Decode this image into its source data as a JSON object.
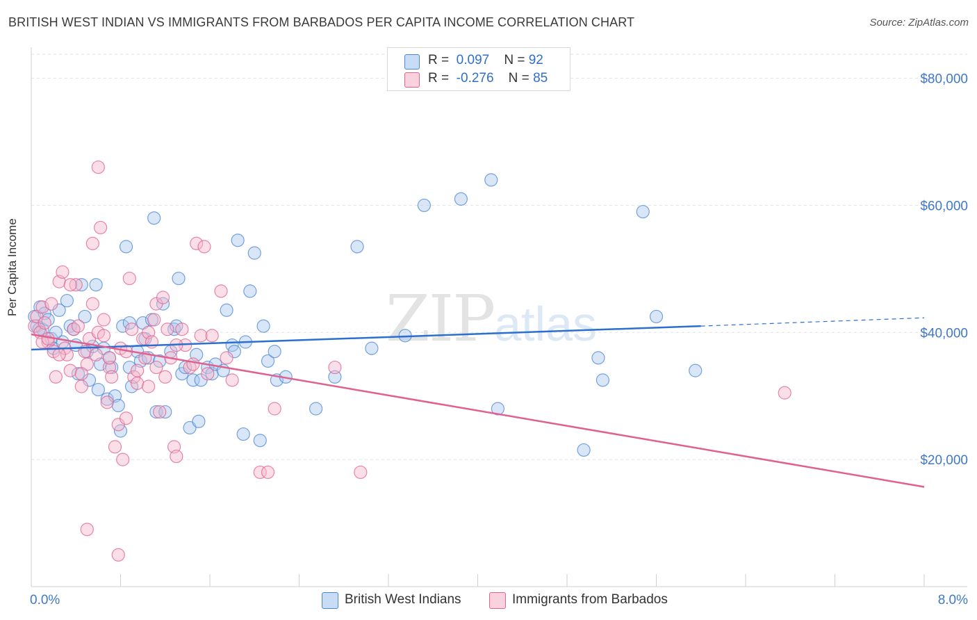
{
  "title": "BRITISH WEST INDIAN VS IMMIGRANTS FROM BARBADOS PER CAPITA INCOME CORRELATION CHART",
  "source": "Source: ZipAtlas.com",
  "watermark": {
    "zip": "ZIP",
    "atlas": "atlas"
  },
  "legend": {
    "rows": [
      {
        "r_label": "R =",
        "r_value": "0.097",
        "n_label": "N =",
        "n_value": "92",
        "color": "#a9c8ef"
      },
      {
        "r_label": "R =",
        "r_value": "-0.276",
        "n_label": "N =",
        "n_value": "85",
        "color": "#f5b8cb"
      }
    ]
  },
  "chart_data": {
    "type": "scatter",
    "title": "BRITISH WEST INDIAN VS IMMIGRANTS FROM BARBADOS PER CAPITA INCOME CORRELATION CHART",
    "xlabel": "",
    "ylabel": "Per Capita Income",
    "xlim": [
      0,
      8
    ],
    "ylim": [
      0,
      84000
    ],
    "x_tick_labels": [
      "0.0%",
      "8.0%"
    ],
    "y_ticks": [
      20000,
      40000,
      60000,
      80000
    ],
    "y_tick_labels": [
      "$20,000",
      "$40,000",
      "$60,000",
      "$80,000"
    ],
    "grid": true,
    "legend_position": "top-center",
    "series": [
      {
        "name": "British West Indians",
        "color": "#4a86d4",
        "fill": "#a9c8ef",
        "trend": {
          "x0": 0,
          "y0": 37300,
          "x1": 6,
          "y1": 41000,
          "dashed_to_x": 8,
          "dashed_to_y": 42300
        },
        "points": [
          [
            0.03,
            42500
          ],
          [
            0.05,
            41000
          ],
          [
            0.08,
            44000
          ],
          [
            0.1,
            40500
          ],
          [
            0.12,
            43000
          ],
          [
            0.15,
            42000
          ],
          [
            0.18,
            39000
          ],
          [
            0.2,
            37500
          ],
          [
            0.25,
            43500
          ],
          [
            0.28,
            38500
          ],
          [
            0.32,
            45000
          ],
          [
            0.35,
            41000
          ],
          [
            0.4,
            38000
          ],
          [
            0.42,
            33500
          ],
          [
            0.45,
            47500
          ],
          [
            0.48,
            42500
          ],
          [
            0.5,
            37000
          ],
          [
            0.52,
            32500
          ],
          [
            0.55,
            37800
          ],
          [
            0.58,
            47500
          ],
          [
            0.6,
            31000
          ],
          [
            0.62,
            35000
          ],
          [
            0.65,
            37500
          ],
          [
            0.68,
            29500
          ],
          [
            0.7,
            36000
          ],
          [
            0.72,
            34500
          ],
          [
            0.75,
            30000
          ],
          [
            0.78,
            28500
          ],
          [
            0.8,
            24500
          ],
          [
            0.82,
            41000
          ],
          [
            0.85,
            53500
          ],
          [
            0.88,
            34500
          ],
          [
            0.9,
            31500
          ],
          [
            0.95,
            37000
          ],
          [
            0.98,
            35500
          ],
          [
            1.0,
            41500
          ],
          [
            1.02,
            39000
          ],
          [
            1.05,
            36000
          ],
          [
            1.08,
            42000
          ],
          [
            1.1,
            58000
          ],
          [
            1.12,
            27500
          ],
          [
            1.15,
            35500
          ],
          [
            1.18,
            44500
          ],
          [
            1.2,
            27500
          ],
          [
            1.25,
            37000
          ],
          [
            1.28,
            40500
          ],
          [
            1.3,
            41000
          ],
          [
            1.32,
            48500
          ],
          [
            1.35,
            33500
          ],
          [
            1.38,
            34500
          ],
          [
            1.42,
            25000
          ],
          [
            1.45,
            32500
          ],
          [
            1.48,
            36500
          ],
          [
            1.5,
            26000
          ],
          [
            1.52,
            32500
          ],
          [
            1.58,
            34500
          ],
          [
            1.62,
            33500
          ],
          [
            1.65,
            35000
          ],
          [
            1.72,
            34000
          ],
          [
            1.75,
            43500
          ],
          [
            1.8,
            38000
          ],
          [
            1.82,
            37000
          ],
          [
            1.85,
            54500
          ],
          [
            1.9,
            24000
          ],
          [
            1.92,
            38500
          ],
          [
            1.96,
            46500
          ],
          [
            2.0,
            52500
          ],
          [
            2.05,
            23000
          ],
          [
            2.08,
            41000
          ],
          [
            2.12,
            35500
          ],
          [
            2.18,
            37000
          ],
          [
            2.2,
            32500
          ],
          [
            2.28,
            33000
          ],
          [
            2.55,
            28000
          ],
          [
            2.72,
            33000
          ],
          [
            2.92,
            53500
          ],
          [
            3.05,
            37500
          ],
          [
            3.35,
            39500
          ],
          [
            3.52,
            60000
          ],
          [
            3.85,
            61000
          ],
          [
            4.12,
            64000
          ],
          [
            4.18,
            28000
          ],
          [
            4.95,
            21500
          ],
          [
            5.08,
            36000
          ],
          [
            5.12,
            32500
          ],
          [
            5.48,
            59000
          ],
          [
            5.6,
            42500
          ],
          [
            5.95,
            34000
          ],
          [
            0.07,
            40500
          ],
          [
            0.22,
            40000
          ],
          [
            0.38,
            40500
          ],
          [
            0.88,
            41500
          ]
        ]
      },
      {
        "name": "Immigrants from Barbados",
        "color": "#e0608e",
        "fill": "#f5b8cb",
        "trend": {
          "x0": 0,
          "y0": 39700,
          "x1": 8,
          "y1": 15700
        },
        "points": [
          [
            0.03,
            41000
          ],
          [
            0.05,
            42500
          ],
          [
            0.08,
            40000
          ],
          [
            0.1,
            44000
          ],
          [
            0.12,
            41500
          ],
          [
            0.15,
            38500
          ],
          [
            0.18,
            44500
          ],
          [
            0.2,
            37000
          ],
          [
            0.22,
            33000
          ],
          [
            0.25,
            48000
          ],
          [
            0.28,
            49500
          ],
          [
            0.3,
            37500
          ],
          [
            0.32,
            36500
          ],
          [
            0.35,
            34000
          ],
          [
            0.38,
            40500
          ],
          [
            0.4,
            47500
          ],
          [
            0.42,
            41000
          ],
          [
            0.45,
            31500
          ],
          [
            0.48,
            37000
          ],
          [
            0.5,
            35000
          ],
          [
            0.52,
            39000
          ],
          [
            0.55,
            54000
          ],
          [
            0.58,
            36500
          ],
          [
            0.6,
            66000
          ],
          [
            0.62,
            56500
          ],
          [
            0.65,
            42000
          ],
          [
            0.68,
            29000
          ],
          [
            0.7,
            34500
          ],
          [
            0.72,
            33000
          ],
          [
            0.75,
            22000
          ],
          [
            0.78,
            25500
          ],
          [
            0.8,
            37500
          ],
          [
            0.82,
            20000
          ],
          [
            0.85,
            26500
          ],
          [
            0.88,
            48500
          ],
          [
            0.9,
            40500
          ],
          [
            0.92,
            33000
          ],
          [
            0.95,
            34000
          ],
          [
            1.0,
            39000
          ],
          [
            1.02,
            36000
          ],
          [
            1.05,
            40000
          ],
          [
            1.08,
            38500
          ],
          [
            1.1,
            42000
          ],
          [
            1.12,
            44500
          ],
          [
            1.15,
            27500
          ],
          [
            1.18,
            45500
          ],
          [
            1.2,
            33000
          ],
          [
            1.22,
            40500
          ],
          [
            1.25,
            36000
          ],
          [
            1.28,
            22000
          ],
          [
            1.3,
            20500
          ],
          [
            1.35,
            40500
          ],
          [
            1.38,
            38000
          ],
          [
            1.42,
            34500
          ],
          [
            1.45,
            35000
          ],
          [
            1.48,
            54000
          ],
          [
            1.52,
            39500
          ],
          [
            1.55,
            53500
          ],
          [
            1.58,
            33500
          ],
          [
            1.62,
            39500
          ],
          [
            1.7,
            46500
          ],
          [
            1.75,
            36000
          ],
          [
            1.8,
            32500
          ],
          [
            2.05,
            18000
          ],
          [
            2.12,
            18000
          ],
          [
            2.18,
            28000
          ],
          [
            2.72,
            34500
          ],
          [
            2.95,
            18000
          ],
          [
            6.75,
            30500
          ],
          [
            0.5,
            9000
          ],
          [
            0.78,
            5000
          ],
          [
            0.1,
            38500
          ],
          [
            0.15,
            39000
          ],
          [
            0.35,
            47500
          ],
          [
            0.6,
            40000
          ],
          [
            0.7,
            36000
          ],
          [
            0.95,
            32000
          ],
          [
            1.12,
            34500
          ],
          [
            1.3,
            38000
          ],
          [
            0.25,
            36500
          ],
          [
            0.45,
            33500
          ],
          [
            0.55,
            44500
          ],
          [
            0.65,
            39500
          ],
          [
            0.85,
            37000
          ],
          [
            1.05,
            31500
          ]
        ]
      }
    ]
  }
}
